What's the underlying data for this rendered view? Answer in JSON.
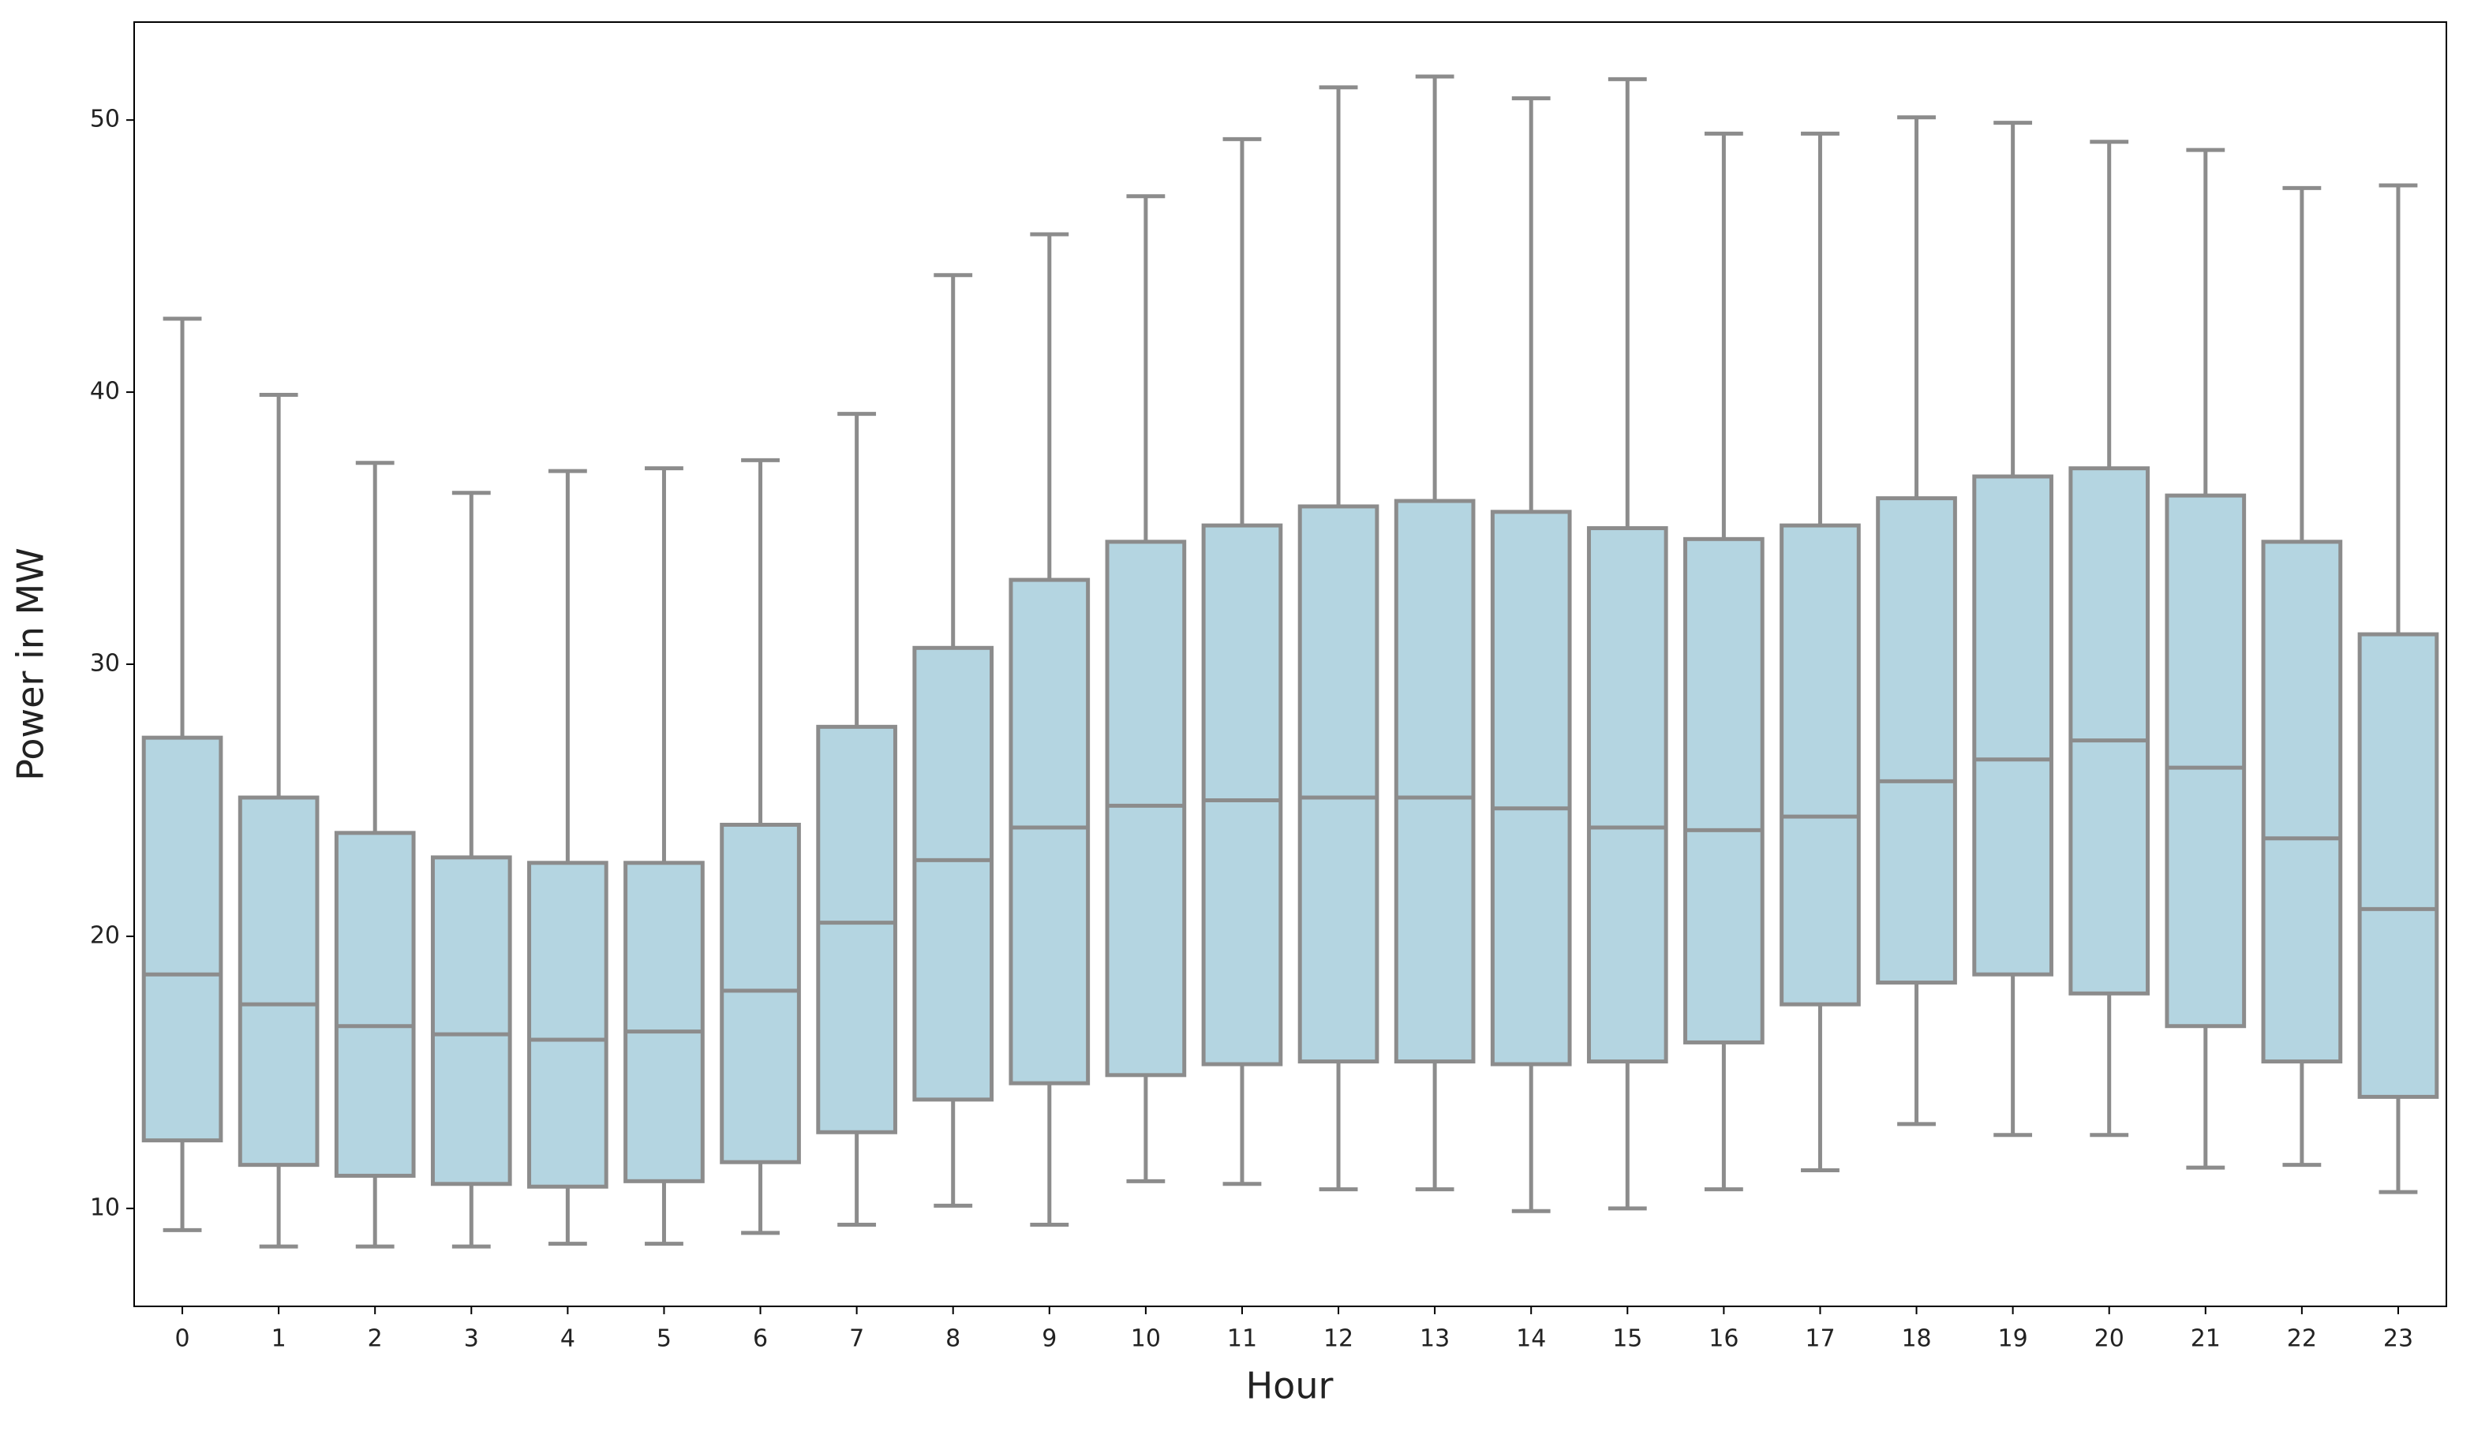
{
  "chart_data": {
    "type": "box",
    "x_label": "Hour",
    "y_label": "Power in MW",
    "categories": [
      "0",
      "1",
      "2",
      "3",
      "4",
      "5",
      "6",
      "7",
      "8",
      "9",
      "10",
      "11",
      "12",
      "13",
      "14",
      "15",
      "16",
      "17",
      "18",
      "19",
      "20",
      "21",
      "22",
      "23"
    ],
    "boxes": [
      {
        "whislo": 9.2,
        "q1": 12.5,
        "med": 18.6,
        "q3": 27.3,
        "whishi": 42.7
      },
      {
        "whislo": 8.6,
        "q1": 11.6,
        "med": 17.5,
        "q3": 25.1,
        "whishi": 39.9
      },
      {
        "whislo": 8.6,
        "q1": 11.2,
        "med": 16.7,
        "q3": 23.8,
        "whishi": 37.4
      },
      {
        "whislo": 8.6,
        "q1": 10.9,
        "med": 16.4,
        "q3": 22.9,
        "whishi": 36.3
      },
      {
        "whislo": 8.7,
        "q1": 10.8,
        "med": 16.2,
        "q3": 22.7,
        "whishi": 37.1
      },
      {
        "whislo": 8.7,
        "q1": 11.0,
        "med": 16.5,
        "q3": 22.7,
        "whishi": 37.2
      },
      {
        "whislo": 9.1,
        "q1": 11.7,
        "med": 18.0,
        "q3": 24.1,
        "whishi": 37.5
      },
      {
        "whislo": 9.4,
        "q1": 12.8,
        "med": 20.5,
        "q3": 27.7,
        "whishi": 39.2
      },
      {
        "whislo": 10.1,
        "q1": 14.0,
        "med": 22.8,
        "q3": 30.6,
        "whishi": 44.3
      },
      {
        "whislo": 9.4,
        "q1": 14.6,
        "med": 24.0,
        "q3": 33.1,
        "whishi": 45.8
      },
      {
        "whislo": 11.0,
        "q1": 14.9,
        "med": 24.8,
        "q3": 34.5,
        "whishi": 47.2
      },
      {
        "whislo": 10.9,
        "q1": 15.3,
        "med": 25.0,
        "q3": 35.1,
        "whishi": 49.3
      },
      {
        "whislo": 10.7,
        "q1": 15.4,
        "med": 25.1,
        "q3": 35.8,
        "whishi": 51.2
      },
      {
        "whislo": 10.7,
        "q1": 15.4,
        "med": 25.1,
        "q3": 36.0,
        "whishi": 51.6
      },
      {
        "whislo": 9.9,
        "q1": 15.3,
        "med": 24.7,
        "q3": 35.6,
        "whishi": 50.8
      },
      {
        "whislo": 10.0,
        "q1": 15.4,
        "med": 24.0,
        "q3": 35.0,
        "whishi": 51.5
      },
      {
        "whislo": 10.7,
        "q1": 16.1,
        "med": 23.9,
        "q3": 34.6,
        "whishi": 49.5
      },
      {
        "whislo": 11.4,
        "q1": 17.5,
        "med": 24.4,
        "q3": 35.1,
        "whishi": 49.5
      },
      {
        "whislo": 13.1,
        "q1": 18.3,
        "med": 25.7,
        "q3": 36.1,
        "whishi": 50.1
      },
      {
        "whislo": 12.7,
        "q1": 18.6,
        "med": 26.5,
        "q3": 36.9,
        "whishi": 49.9
      },
      {
        "whislo": 12.7,
        "q1": 17.9,
        "med": 27.2,
        "q3": 37.2,
        "whishi": 49.2
      },
      {
        "whislo": 11.5,
        "q1": 16.7,
        "med": 26.2,
        "q3": 36.2,
        "whishi": 48.9
      },
      {
        "whislo": 11.6,
        "q1": 15.4,
        "med": 23.6,
        "q3": 34.5,
        "whishi": 47.5
      },
      {
        "whislo": 10.6,
        "q1": 14.1,
        "med": 21.0,
        "q3": 31.1,
        "whishi": 47.6
      }
    ],
    "color": "#b4d5e1",
    "edge_color": "#8c8c8c",
    "ylim": [
      6.4,
      53.6
    ],
    "yticks": [
      10,
      20,
      30,
      40,
      50
    ],
    "grid": false
  }
}
